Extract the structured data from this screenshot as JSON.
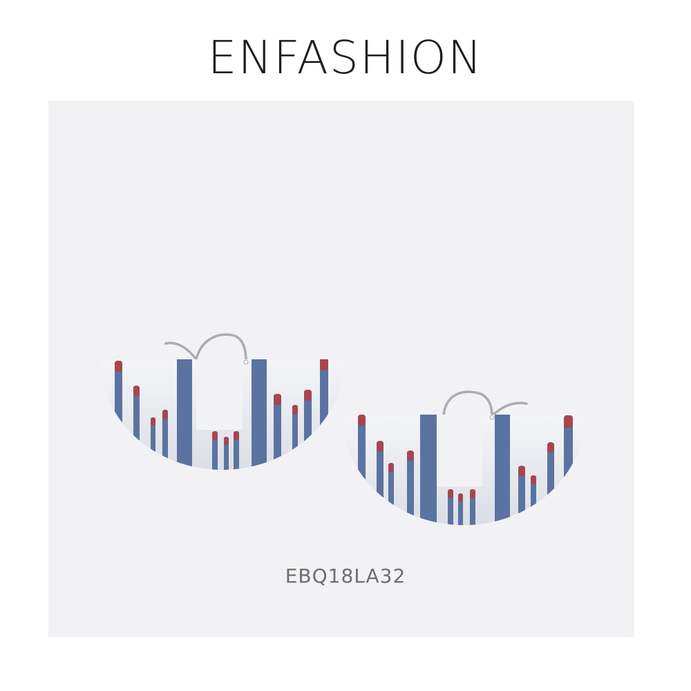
{
  "brand": {
    "name": "ENFASHION"
  },
  "product": {
    "sku": "EBQ18LA32"
  },
  "colors": {
    "background": "#ffffff",
    "panel": "#f2f2f5",
    "disc": "#e9ecf1",
    "stripe": "#5b73a0",
    "tip": "#a8454f",
    "wire": "#a9adb3"
  }
}
